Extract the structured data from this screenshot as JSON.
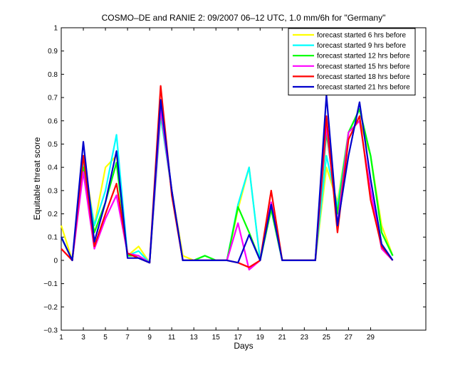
{
  "chart_data": {
    "type": "line",
    "title": "COSMO–DE and RANIE 2: 09/2007 06–12 UTC, 1.0 mm/6h for \"Germany\"",
    "xlabel": "Days",
    "ylabel": "Equitable threat score",
    "xlim": [
      1,
      34
    ],
    "ylim": [
      -0.3,
      1
    ],
    "xticks": [
      1,
      3,
      5,
      7,
      9,
      11,
      13,
      15,
      17,
      19,
      21,
      23,
      25,
      27,
      29
    ],
    "yticks": [
      -0.3,
      -0.2,
      -0.1,
      0,
      0.1,
      0.2,
      0.3,
      0.4,
      0.5,
      0.6,
      0.7,
      0.8,
      0.9,
      1
    ],
    "ytick_labels": [
      "−0.3",
      "−0.2",
      "−0.1",
      "0",
      "0.1",
      "0.2",
      "0.3",
      "0.4",
      "0.5",
      "0.6",
      "0.7",
      "0.8",
      "0.9",
      "1"
    ],
    "grid": false,
    "legend_position": "top-right",
    "x": [
      1,
      2,
      3,
      4,
      5,
      6,
      7,
      8,
      9,
      10,
      11,
      12,
      13,
      14,
      15,
      16,
      17,
      18,
      19,
      20,
      21,
      22,
      23,
      24,
      25,
      26,
      27,
      28,
      29,
      30,
      31
    ],
    "series": [
      {
        "name": "forecast started 6 hrs before",
        "color": "#ffff00",
        "values": [
          0.15,
          0.0,
          0.45,
          0.15,
          0.4,
          0.45,
          0.02,
          0.06,
          -0.01,
          0.63,
          0.3,
          0.02,
          0.0,
          0.02,
          0.0,
          0.0,
          0.22,
          0.4,
          0.0,
          0.22,
          0.0,
          0.0,
          0.0,
          0.0,
          0.4,
          0.25,
          0.55,
          0.6,
          0.45,
          0.15,
          0.02
        ]
      },
      {
        "name": "forecast started 9 hrs before",
        "color": "#00ffff",
        "values": [
          0.1,
          0.0,
          0.42,
          0.15,
          0.3,
          0.54,
          0.02,
          0.04,
          -0.01,
          0.62,
          0.3,
          0.0,
          0.0,
          0.02,
          0.0,
          0.0,
          0.24,
          0.4,
          0.0,
          0.22,
          0.0,
          0.0,
          0.0,
          0.0,
          0.45,
          0.23,
          0.55,
          0.65,
          0.45,
          0.12,
          0.02
        ]
      },
      {
        "name": "forecast started 12 hrs before",
        "color": "#00ff00",
        "values": [
          0.1,
          0.0,
          0.4,
          0.12,
          0.25,
          0.42,
          0.02,
          0.02,
          -0.01,
          0.64,
          0.3,
          0.0,
          0.0,
          0.02,
          0.0,
          0.0,
          0.23,
          0.12,
          0.0,
          0.22,
          0.0,
          0.0,
          0.0,
          0.0,
          0.55,
          0.2,
          0.55,
          0.65,
          0.45,
          0.12,
          0.02
        ]
      },
      {
        "name": "forecast started 15 hrs before",
        "color": "#ff00ff",
        "values": [
          0.05,
          0.0,
          0.38,
          0.05,
          0.18,
          0.28,
          0.03,
          0.02,
          -0.01,
          0.65,
          0.3,
          0.0,
          0.0,
          0.0,
          0.0,
          0.0,
          0.16,
          -0.04,
          0.0,
          0.25,
          0.0,
          0.0,
          0.0,
          0.0,
          0.58,
          0.15,
          0.55,
          0.6,
          0.3,
          0.05,
          0.0
        ]
      },
      {
        "name": "forecast started 18 hrs before",
        "color": "#ff0000",
        "values": [
          0.05,
          0.0,
          0.45,
          0.06,
          0.2,
          0.33,
          0.03,
          0.01,
          -0.01,
          0.75,
          0.28,
          0.0,
          0.0,
          0.0,
          0.0,
          0.0,
          -0.01,
          -0.03,
          0.0,
          0.3,
          0.0,
          0.0,
          0.0,
          0.0,
          0.62,
          0.12,
          0.52,
          0.62,
          0.26,
          0.06,
          0.0
        ]
      },
      {
        "name": "forecast started 21 hrs before",
        "color": "#0000cc",
        "values": [
          0.1,
          0.0,
          0.51,
          0.08,
          0.25,
          0.47,
          0.01,
          0.01,
          -0.01,
          0.69,
          0.3,
          0.0,
          0.0,
          0.0,
          0.0,
          0.0,
          -0.01,
          0.11,
          0.0,
          0.24,
          0.0,
          0.0,
          0.0,
          0.0,
          0.71,
          0.15,
          0.45,
          0.68,
          0.35,
          0.07,
          0.0
        ]
      }
    ]
  }
}
